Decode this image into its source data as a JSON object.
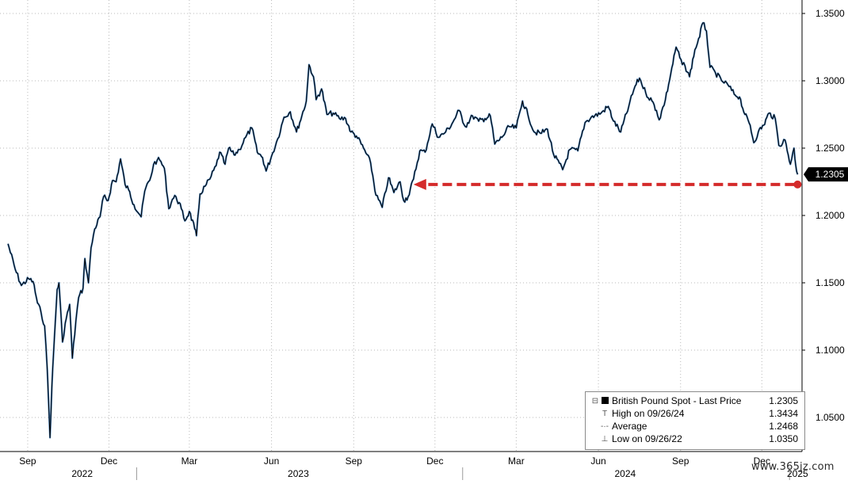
{
  "chart_data": {
    "type": "line",
    "title": "",
    "xlabel": "",
    "ylabel": "",
    "ylim": [
      1.032,
      1.36
    ],
    "y_ticks": [
      "1.3500",
      "1.3000",
      "1.2500",
      "1.2000",
      "1.1500",
      "1.1000",
      "1.0500"
    ],
    "y_tick_values": [
      1.35,
      1.3,
      1.25,
      1.2,
      1.15,
      1.1,
      1.05
    ],
    "x_ticks": [
      {
        "label": "Sep",
        "date": "2022-09-01"
      },
      {
        "label": "Dec",
        "date": "2022-12-01"
      },
      {
        "label": "Mar",
        "date": "2023-03-01"
      },
      {
        "label": "Jun",
        "date": "2023-06-01"
      },
      {
        "label": "Sep",
        "date": "2023-09-01"
      },
      {
        "label": "Dec",
        "date": "2023-12-01"
      },
      {
        "label": "Mar",
        "date": "2024-03-01"
      },
      {
        "label": "Jun",
        "date": "2024-06-01"
      },
      {
        "label": "Sep",
        "date": "2024-09-01"
      },
      {
        "label": "Dec",
        "date": "2024-12-01"
      }
    ],
    "year_labels": [
      {
        "label": "2022",
        "date": "2022-11-01"
      },
      {
        "label": "2023",
        "date": "2023-07-01"
      },
      {
        "label": "2024",
        "date": "2024-07-01"
      },
      {
        "label": "2025",
        "date": "2025-01-10"
      }
    ],
    "year_separators": [
      "2023-01-01",
      "2024-01-01",
      "2025-01-01"
    ],
    "grid": true,
    "series": [
      {
        "name": "British Pound Spot - Last Price",
        "color": "#000000",
        "accent_color": "#2f6fb0",
        "points": [
          [
            "2022-08-10",
            1.179
          ],
          [
            "2022-08-18",
            1.16
          ],
          [
            "2022-08-25",
            1.148
          ],
          [
            "2022-09-02",
            1.153
          ],
          [
            "2022-09-07",
            1.151
          ],
          [
            "2022-09-12",
            1.135
          ],
          [
            "2022-09-16",
            1.128
          ],
          [
            "2022-09-20",
            1.118
          ],
          [
            "2022-09-23",
            1.085
          ],
          [
            "2022-09-26",
            1.035
          ],
          [
            "2022-09-28",
            1.072
          ],
          [
            "2022-09-30",
            1.098
          ],
          [
            "2022-10-04",
            1.145
          ],
          [
            "2022-10-06",
            1.15
          ],
          [
            "2022-10-10",
            1.106
          ],
          [
            "2022-10-13",
            1.12
          ],
          [
            "2022-10-18",
            1.134
          ],
          [
            "2022-10-21",
            1.094
          ],
          [
            "2022-10-25",
            1.122
          ],
          [
            "2022-10-28",
            1.139
          ],
          [
            "2022-11-02",
            1.146
          ],
          [
            "2022-11-04",
            1.168
          ],
          [
            "2022-11-08",
            1.15
          ],
          [
            "2022-11-11",
            1.176
          ],
          [
            "2022-11-15",
            1.19
          ],
          [
            "2022-11-21",
            1.199
          ],
          [
            "2022-11-25",
            1.214
          ],
          [
            "2022-11-30",
            1.211
          ],
          [
            "2022-12-05",
            1.226
          ],
          [
            "2022-12-09",
            1.225
          ],
          [
            "2022-12-14",
            1.242
          ],
          [
            "2022-12-19",
            1.223
          ],
          [
            "2022-12-23",
            1.219
          ],
          [
            "2022-12-29",
            1.208
          ],
          [
            "2023-01-06",
            1.199
          ],
          [
            "2023-01-10",
            1.218
          ],
          [
            "2023-01-17",
            1.229
          ],
          [
            "2023-01-20",
            1.238
          ],
          [
            "2023-01-24",
            1.241
          ],
          [
            "2023-01-27",
            1.241
          ],
          [
            "2023-02-01",
            1.235
          ],
          [
            "2023-02-06",
            1.205
          ],
          [
            "2023-02-10",
            1.212
          ],
          [
            "2023-02-14",
            1.214
          ],
          [
            "2023-02-20",
            1.205
          ],
          [
            "2023-02-24",
            1.196
          ],
          [
            "2023-03-01",
            1.203
          ],
          [
            "2023-03-07",
            1.19
          ],
          [
            "2023-03-09",
            1.185
          ],
          [
            "2023-03-13",
            1.216
          ],
          [
            "2023-03-20",
            1.223
          ],
          [
            "2023-03-24",
            1.227
          ],
          [
            "2023-03-31",
            1.237
          ],
          [
            "2023-04-04",
            1.247
          ],
          [
            "2023-04-10",
            1.238
          ],
          [
            "2023-04-14",
            1.25
          ],
          [
            "2023-04-20",
            1.245
          ],
          [
            "2023-04-26",
            1.249
          ],
          [
            "2023-05-03",
            1.258
          ],
          [
            "2023-05-10",
            1.265
          ],
          [
            "2023-05-16",
            1.247
          ],
          [
            "2023-05-22",
            1.243
          ],
          [
            "2023-05-26",
            1.233
          ],
          [
            "2023-06-01",
            1.244
          ],
          [
            "2023-06-08",
            1.257
          ],
          [
            "2023-06-15",
            1.273
          ],
          [
            "2023-06-22",
            1.277
          ],
          [
            "2023-06-29",
            1.262
          ],
          [
            "2023-07-05",
            1.274
          ],
          [
            "2023-07-10",
            1.285
          ],
          [
            "2023-07-13",
            1.312
          ],
          [
            "2023-07-18",
            1.303
          ],
          [
            "2023-07-21",
            1.286
          ],
          [
            "2023-07-27",
            1.294
          ],
          [
            "2023-08-02",
            1.275
          ],
          [
            "2023-08-09",
            1.276
          ],
          [
            "2023-08-16",
            1.272
          ],
          [
            "2023-08-23",
            1.272
          ],
          [
            "2023-08-29",
            1.262
          ],
          [
            "2023-09-04",
            1.259
          ],
          [
            "2023-09-12",
            1.25
          ],
          [
            "2023-09-20",
            1.239
          ],
          [
            "2023-09-26",
            1.215
          ],
          [
            "2023-10-03",
            1.206
          ],
          [
            "2023-10-10",
            1.228
          ],
          [
            "2023-10-16",
            1.217
          ],
          [
            "2023-10-23",
            1.225
          ],
          [
            "2023-10-27",
            1.211
          ],
          [
            "2023-11-01",
            1.214
          ],
          [
            "2023-11-07",
            1.227
          ],
          [
            "2023-11-14",
            1.248
          ],
          [
            "2023-11-20",
            1.247
          ],
          [
            "2023-11-28",
            1.268
          ],
          [
            "2023-12-05",
            1.258
          ],
          [
            "2023-12-13",
            1.262
          ],
          [
            "2023-12-20",
            1.268
          ],
          [
            "2023-12-28",
            1.278
          ],
          [
            "2024-01-04",
            1.266
          ],
          [
            "2024-01-12",
            1.274
          ],
          [
            "2024-01-19",
            1.27
          ],
          [
            "2024-01-26",
            1.272
          ],
          [
            "2024-02-01",
            1.274
          ],
          [
            "2024-02-06",
            1.253
          ],
          [
            "2024-02-14",
            1.258
          ],
          [
            "2024-02-22",
            1.266
          ],
          [
            "2024-03-01",
            1.265
          ],
          [
            "2024-03-08",
            1.285
          ],
          [
            "2024-03-14",
            1.275
          ],
          [
            "2024-03-21",
            1.262
          ],
          [
            "2024-03-28",
            1.261
          ],
          [
            "2024-04-05",
            1.264
          ],
          [
            "2024-04-12",
            1.245
          ],
          [
            "2024-04-22",
            1.234
          ],
          [
            "2024-04-30",
            1.249
          ],
          [
            "2024-05-09",
            1.248
          ],
          [
            "2024-05-17",
            1.269
          ],
          [
            "2024-05-24",
            1.273
          ],
          [
            "2024-06-04",
            1.276
          ],
          [
            "2024-06-12",
            1.281
          ],
          [
            "2024-06-18",
            1.27
          ],
          [
            "2024-06-26",
            1.262
          ],
          [
            "2024-07-05",
            1.281
          ],
          [
            "2024-07-12",
            1.296
          ],
          [
            "2024-07-17",
            1.302
          ],
          [
            "2024-07-24",
            1.291
          ],
          [
            "2024-07-31",
            1.285
          ],
          [
            "2024-08-05",
            1.278
          ],
          [
            "2024-08-08",
            1.271
          ],
          [
            "2024-08-15",
            1.286
          ],
          [
            "2024-08-21",
            1.305
          ],
          [
            "2024-08-27",
            1.325
          ],
          [
            "2024-09-03",
            1.312
          ],
          [
            "2024-09-06",
            1.311
          ],
          [
            "2024-09-11",
            1.303
          ],
          [
            "2024-09-17",
            1.323
          ],
          [
            "2024-09-20",
            1.328
          ],
          [
            "2024-09-26",
            1.343
          ],
          [
            "2024-09-30",
            1.337
          ],
          [
            "2024-10-04",
            1.31
          ],
          [
            "2024-10-10",
            1.306
          ],
          [
            "2024-10-17",
            1.3
          ],
          [
            "2024-10-24",
            1.297
          ],
          [
            "2024-10-31",
            1.29
          ],
          [
            "2024-11-06",
            1.288
          ],
          [
            "2024-11-12",
            1.275
          ],
          [
            "2024-11-18",
            1.267
          ],
          [
            "2024-11-22",
            1.254
          ],
          [
            "2024-11-27",
            1.262
          ],
          [
            "2024-12-03",
            1.267
          ],
          [
            "2024-12-09",
            1.276
          ],
          [
            "2024-12-16",
            1.272
          ],
          [
            "2024-12-20",
            1.252
          ],
          [
            "2024-12-27",
            1.256
          ],
          [
            "2025-01-02",
            1.238
          ],
          [
            "2025-01-06",
            1.25
          ],
          [
            "2025-01-08",
            1.237
          ],
          [
            "2025-01-10",
            1.2305
          ]
        ]
      }
    ],
    "last_price": {
      "label": "1.2305",
      "value": 1.2305
    },
    "annotation_arrow": {
      "from": {
        "date": "2025-01-10",
        "value": 1.223
      },
      "to": {
        "date": "2023-11-07",
        "value": 1.223
      },
      "color": "#d42a2a"
    }
  },
  "legend": {
    "rows": [
      {
        "marker": "series-box",
        "label": "British Pound Spot - Last Price",
        "value": "1.2305"
      },
      {
        "marker": "T",
        "label": "High on 09/26/24",
        "value": "1.3434"
      },
      {
        "marker": "-·-",
        "label": "Average",
        "value": "1.2468"
      },
      {
        "marker": "⊥",
        "label": "Low on 09/26/22",
        "value": "1.0350"
      }
    ]
  },
  "watermark": "www.365jz.com"
}
